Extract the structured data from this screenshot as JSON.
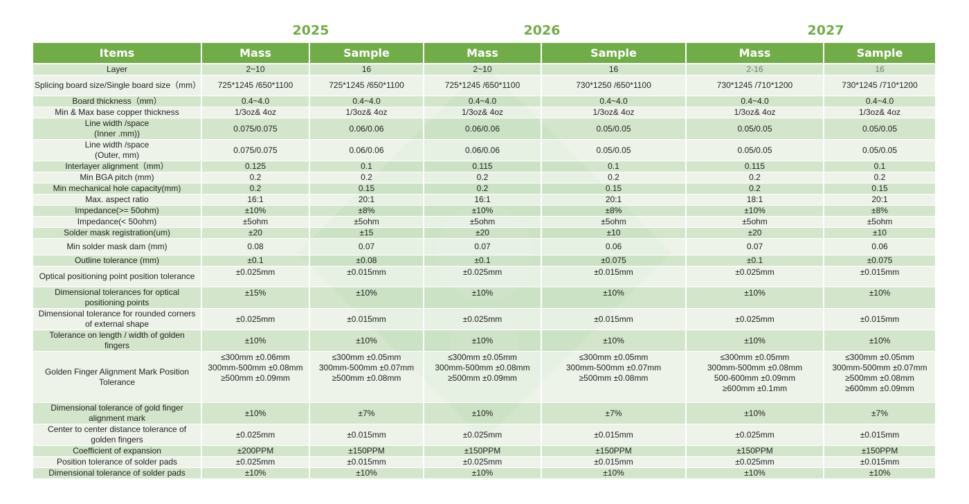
{
  "years": [
    "2025",
    "2026",
    "2027"
  ],
  "headers": [
    "Items",
    "Mass",
    "Sample",
    "Mass",
    "Sample",
    "Mass",
    "Sample"
  ],
  "colors": {
    "header_green": "#70ad47",
    "year_green": "#72ac47",
    "row_dark": "#d6e6cf",
    "row_light": "#eef3ea"
  },
  "rows": [
    {
      "label": "Layer",
      "values": [
        "2~10",
        "16",
        "2~10",
        "16",
        "2-16",
        "16"
      ]
    },
    {
      "label": "Splicing board size/Single  board size（mm）",
      "values": [
        "725*1245 /650*1100",
        "725*1245 /650*1100",
        "725*1245 /650*1100",
        "730*1250 /650*1100",
        "730*1245 /710*1200",
        "730*1245 /710*1200"
      ]
    },
    {
      "label": "Board thickness（mm）",
      "values": [
        "0.4~4.0",
        "0.4~4.0",
        "0.4~4.0",
        "0.4~4.0",
        "0.4~4.0",
        "0.4~4.0"
      ]
    },
    {
      "label": "Min & Max base copper thickness",
      "values": [
        "1/3oz& 4oz",
        "1/3oz& 4oz",
        "1/3oz& 4oz",
        "1/3oz& 4oz",
        "1/3oz& 4oz",
        "1/3oz& 4oz"
      ]
    },
    {
      "label": "Line width /space\n(Inner .mm))",
      "values": [
        "0.075/0.075",
        "0.06/0.06",
        "0.06/0.06",
        "0.05/0.05",
        "0.05/0.05",
        "0.05/0.05"
      ]
    },
    {
      "label": "Line width /space\n(Outer, mm)",
      "values": [
        "0.075/0.075",
        "0.06/0.06",
        "0.06/0.06",
        "0.05/0.05",
        "0.05/0.05",
        "0.05/0.05"
      ]
    },
    {
      "label": "Interlayer alignment（mm）",
      "values": [
        "0.125",
        "0.1",
        "0.115",
        "0.1",
        "0.115",
        "0.1"
      ]
    },
    {
      "label": "Min BGA pitch (mm)",
      "values": [
        "0.2",
        "0.2",
        "0.2",
        "0.2",
        "0.2",
        "0.2"
      ]
    },
    {
      "label": "Min mechanical hole capacity(mm)",
      "values": [
        "0.2",
        "0.15",
        "0.2",
        "0.15",
        "0.2",
        "0.15"
      ]
    },
    {
      "label": "Max. aspect ratio",
      "values": [
        "16:1",
        "20:1",
        "16:1",
        "20:1",
        "18:1",
        "20:1"
      ]
    },
    {
      "label": "Impedance(>= 50ohm)",
      "values": [
        "±10%",
        "±8%",
        "±10%",
        "±8%",
        "±10%",
        "±8%"
      ]
    },
    {
      "label": "Impedance(< 50ohm)",
      "values": [
        "±5ohm",
        "±5ohm",
        "±5ohm",
        "±5ohm",
        "±5ohm",
        "±5ohm"
      ]
    },
    {
      "label": "Solder mask registration(um)",
      "values": [
        "±20",
        "±15",
        "±20",
        "±10",
        "±20",
        "±10"
      ]
    },
    {
      "label": "Min solder mask dam (mm)",
      "values": [
        "0.08",
        "0.07",
        "0.07",
        "0.06",
        "0.07",
        "0.06"
      ]
    },
    {
      "label": "Outline tolerance (mm)",
      "values": [
        "±0.1",
        "±0.08",
        "±0.1",
        "±0.075",
        "±0.1",
        "±0.075"
      ]
    },
    {
      "label": "Optical positioning point position tolerance",
      "values": [
        "±0.025mm",
        "±0.015mm",
        "±0.025mm",
        "±0.015mm",
        "±0.025mm",
        "±0.015mm"
      ]
    },
    {
      "label": "Dimensional tolerances for optical\npositioning points",
      "values": [
        "±15%",
        "±10%",
        "±10%",
        "±10%",
        "±10%",
        "±10%"
      ]
    },
    {
      "label": "Dimensional tolerance for rounded corners\nof external shape",
      "values": [
        "±0.025mm",
        "±0.015mm",
        "±0.025mm",
        "±0.015mm",
        "±0.025mm",
        "±0.015mm"
      ]
    },
    {
      "label": "Tolerance on length / width of golden\nfingers",
      "values": [
        "±10%",
        "±10%",
        "±10%",
        "±10%",
        "±10%",
        "±10%"
      ]
    },
    {
      "label": "Golden Finger Alignment Mark Position\nTolerance",
      "values": [
        "≤300mm   ±0.06mm\n300mm-500mm  ±0.08mm\n≥500mm   ±0.09mm",
        "≤300mm   ±0.05mm\n300mm-500mm  ±0.07mm\n≥500mm   ±0.08mm",
        "≤300mm   ±0.05mm\n300mm-500mm  ±0.08mm\n≥500mm   ±0.09mm",
        "≤300mm   ±0.05mm\n300mm-500mm  ±0.07mm\n≥500mm   ±0.08mm",
        "≤300mm   ±0.05mm\n300mm-500mm  ±0.08mm\n500-600mm   ±0.09mm\n≥600mm   ±0.1mm",
        "≤300mm   ±0.05mm\n300mm-500mm  ±0.07mm\n≥500mm   ±0.08mm\n≥600mm   ±0.09mm"
      ]
    },
    {
      "label": "Dimensional tolerance of gold finger\nalignment mark",
      "values": [
        "±10%",
        "±7%",
        "±10%",
        "±7%",
        "±10%",
        "±7%"
      ]
    },
    {
      "label": "Center to center distance tolerance of\ngolden fingers",
      "values": [
        "±0.025mm",
        "±0.015mm",
        "±0.025mm",
        "±0.015mm",
        "±0.025mm",
        "±0.015mm"
      ]
    },
    {
      "label": "Coefficient of expansion",
      "values": [
        "±200PPM",
        "±150PPM",
        "±150PPM",
        "±150PPM",
        "±150PPM",
        "±150PPM"
      ]
    },
    {
      "label": "Position tolerance of solder pads",
      "values": [
        "±0.025mm",
        "±0.015mm",
        "±0.025mm",
        "±0.015mm",
        "±0.025mm",
        "±0.015mm"
      ]
    },
    {
      "label": "Dimensional tolerance of solder pads",
      "values": [
        "±10%",
        "±10%",
        "±10%",
        "±10%",
        "±10%",
        "±10%"
      ]
    }
  ]
}
